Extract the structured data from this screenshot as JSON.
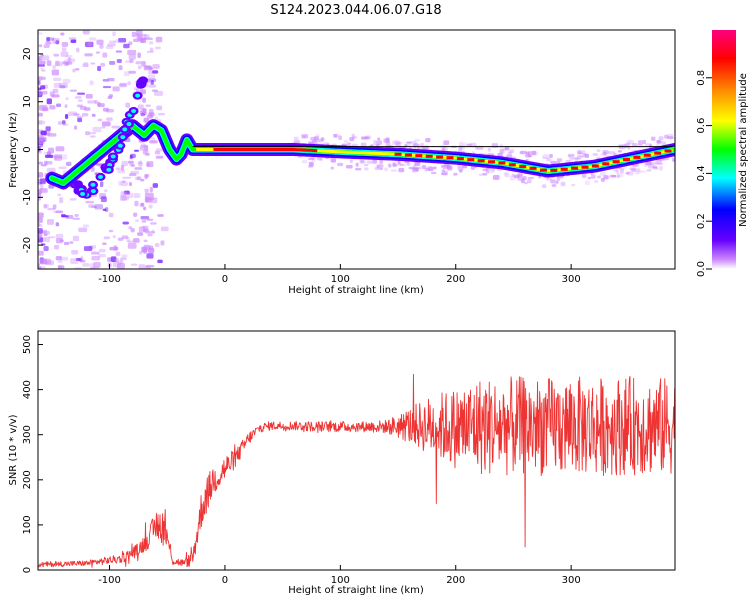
{
  "figure": {
    "title": "S124.2023.044.06.07.G18"
  },
  "chart_data": [
    {
      "type": "heatmap",
      "xlabel": "Height of straight line (km)",
      "ylabel": "Frequency (Hz)",
      "xlim": [
        -162,
        390
      ],
      "ylim": [
        -25,
        25
      ],
      "x_ticks": [
        -100,
        0,
        100,
        200,
        300
      ],
      "y_ticks": [
        -20,
        -10,
        0,
        10,
        20
      ],
      "colorbar": {
        "label": "Normalized spectral amplitude",
        "range": [
          0,
          1
        ],
        "ticks": [
          "0.0",
          "0.2",
          "0.4",
          "0.6",
          "0.8"
        ],
        "colormap": [
          "#cc88ff",
          "#6600ff",
          "#0000ff",
          "#00ffff",
          "#00ff00",
          "#ffff00",
          "#ff8800",
          "#ff0000",
          "#ff0080"
        ]
      },
      "ridge": {
        "x": [
          -150,
          -140,
          -130,
          -120,
          -110,
          -100,
          -90,
          -80,
          -70,
          -62,
          -55,
          -48,
          -42,
          -38,
          -33,
          -28,
          0,
          60,
          100,
          150,
          200,
          240,
          280,
          320,
          360,
          390
        ],
        "y": [
          -6,
          -7,
          -5,
          -3,
          -1,
          1,
          3,
          5,
          3,
          5,
          4,
          0,
          -2,
          -1,
          2,
          0,
          0,
          0,
          -0.5,
          -1,
          -1.8,
          -2.8,
          -4.5,
          -3.5,
          -1.5,
          0
        ]
      },
      "ridge_secondary": {
        "x": [
          -130,
          -120,
          -110,
          -100,
          -90,
          -80,
          -70
        ],
        "y": [
          -8,
          -9,
          -7,
          -3,
          2,
          8,
          16
        ]
      }
    },
    {
      "type": "line",
      "xlabel": "Height of straight line (km)",
      "ylabel": "SNR (10 * v/v)",
      "xlim": [
        -162,
        390
      ],
      "ylim": [
        0,
        530
      ],
      "x_ticks": [
        -100,
        0,
        100,
        200,
        300
      ],
      "y_ticks": [
        0,
        100,
        200,
        300,
        400,
        500
      ],
      "series": [
        {
          "color": "#ee3333",
          "envelope": {
            "x": [
              -162,
              -120,
              -90,
              -75,
              -65,
              -58,
              -52,
              -45,
              -35,
              -28,
              -20,
              -10,
              0,
              10,
              20,
              30,
              40,
              60,
              80,
              100,
              120,
              140,
              160,
              180,
              200,
              220,
              240,
              260,
              280,
              300,
              320,
              340,
              360,
              380,
              390
            ],
            "mean": [
              12,
              15,
              25,
              45,
              75,
              105,
              90,
              20,
              15,
              25,
              140,
              200,
              225,
              250,
              290,
              315,
              320,
              320,
              318,
              318,
              318,
              318,
              320,
              320,
              315,
              320,
              318,
              320,
              318,
              320,
              318,
              320,
              320,
              318,
              320
            ],
            "spread": [
              6,
              6,
              10,
              15,
              25,
              40,
              40,
              10,
              8,
              20,
              45,
              35,
              30,
              20,
              15,
              10,
              10,
              10,
              12,
              12,
              12,
              15,
              40,
              70,
              90,
              110,
              110,
              110,
              110,
              110,
              110,
              110,
              110,
              110,
              110
            ]
          }
        }
      ]
    }
  ]
}
